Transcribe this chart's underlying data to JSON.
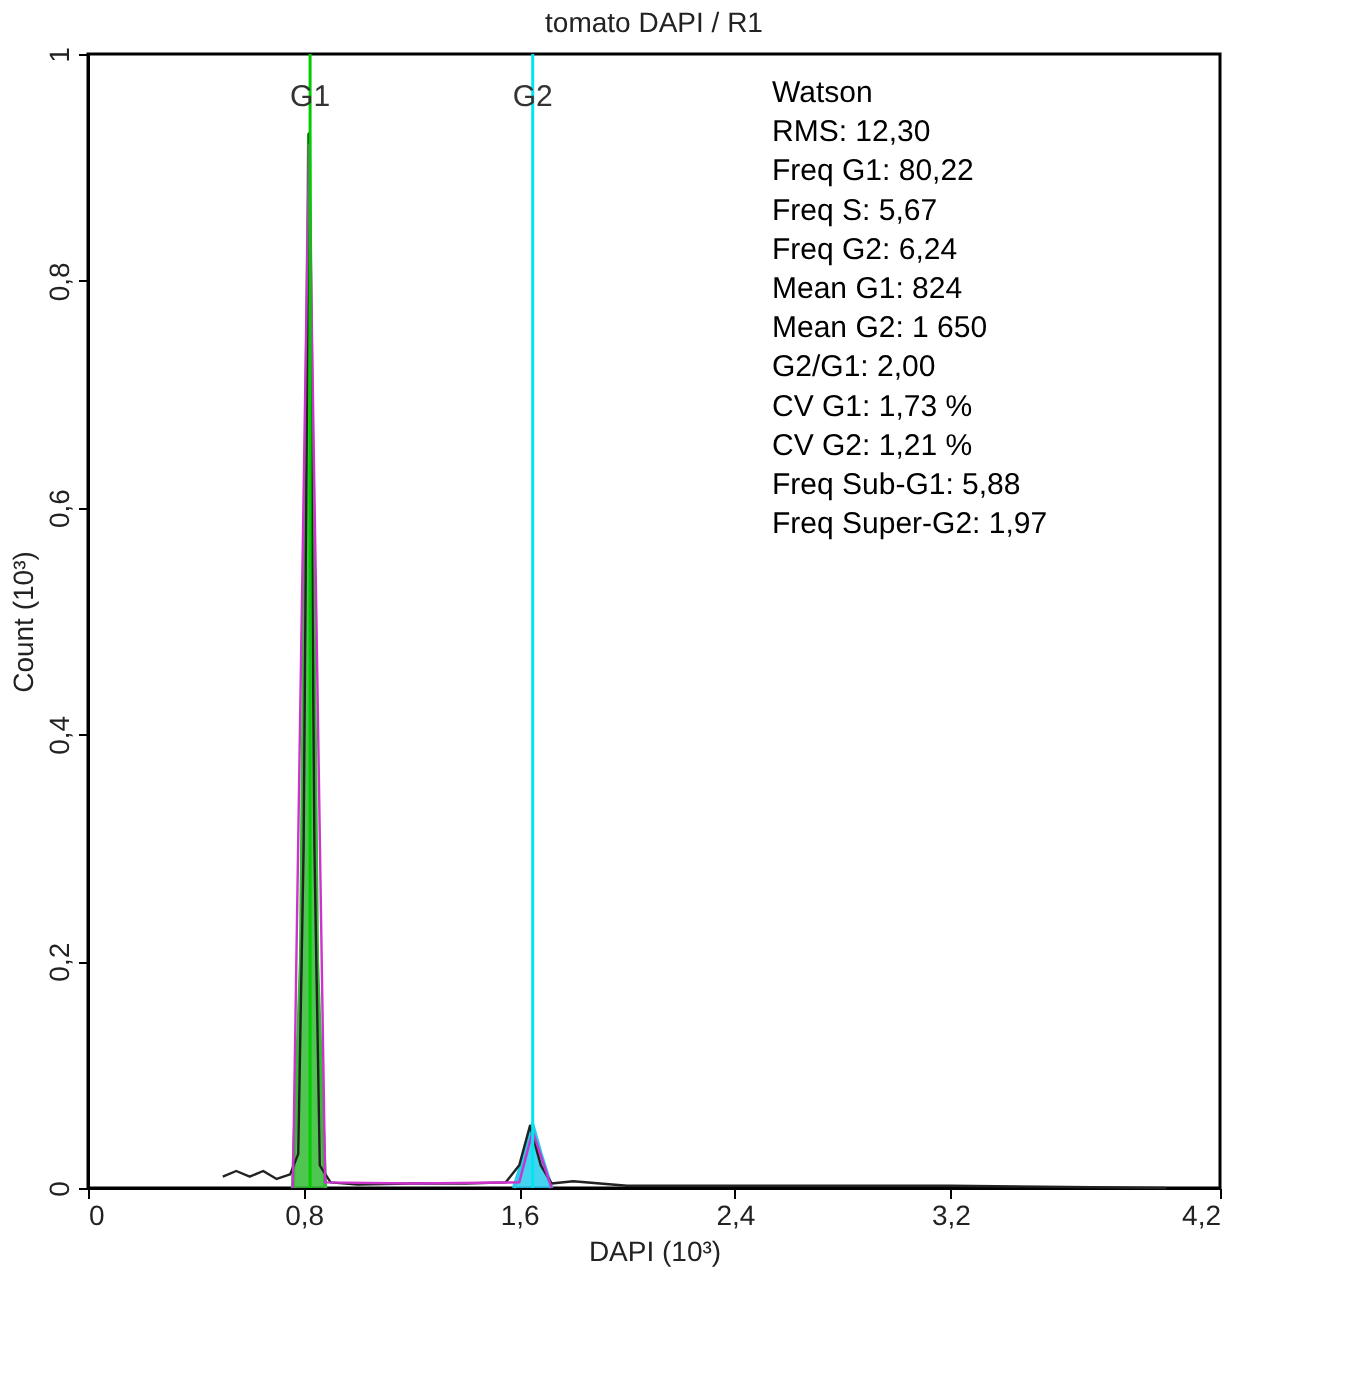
{
  "chart_data": {
    "type": "line",
    "title": "tomato DAPI / R1",
    "xlabel": "DAPI (10³)",
    "ylabel": "Count (10³)",
    "xlim": [
      0,
      4.2
    ],
    "ylim": [
      0,
      1
    ],
    "xticks": [
      {
        "value": 0,
        "label": "0"
      },
      {
        "value": 0.8,
        "label": "0,8"
      },
      {
        "value": 1.6,
        "label": "1,6"
      },
      {
        "value": 2.4,
        "label": "2,4"
      },
      {
        "value": 3.2,
        "label": "3,2"
      },
      {
        "value": 4.2,
        "label": "4,2"
      }
    ],
    "yticks": [
      {
        "value": 0,
        "label": "0"
      },
      {
        "value": 0.2,
        "label": "0,2"
      },
      {
        "value": 0.4,
        "label": "0,4"
      },
      {
        "value": 0.6,
        "label": "0,6"
      },
      {
        "value": 0.8,
        "label": "0,8"
      },
      {
        "value": 1,
        "label": "1"
      }
    ],
    "series": [
      {
        "type": "area",
        "color": "#33bb33",
        "x": [
          0.76,
          0.79,
          0.82,
          0.85,
          0.88
        ],
        "values": [
          0,
          0.2,
          0.93,
          0.2,
          0
        ]
      },
      {
        "type": "area",
        "color": "#22ccee",
        "x": [
          1.58,
          1.62,
          1.65,
          1.68,
          1.72
        ],
        "values": [
          0,
          0.03,
          0.055,
          0.03,
          0
        ]
      },
      {
        "type": "line",
        "color": "#222222",
        "x": [
          0.5,
          0.55,
          0.6,
          0.65,
          0.7,
          0.75,
          0.78,
          0.8,
          0.82,
          0.84,
          0.86,
          0.9,
          1.0,
          1.2,
          1.4,
          1.55,
          1.6,
          1.64,
          1.68,
          1.72,
          1.8,
          2.0,
          3.2,
          4.0
        ],
        "values": [
          0.01,
          0.015,
          0.01,
          0.015,
          0.008,
          0.012,
          0.03,
          0.3,
          0.93,
          0.3,
          0.02,
          0.005,
          0.003,
          0.004,
          0.004,
          0.005,
          0.02,
          0.055,
          0.02,
          0.004,
          0.006,
          0.002,
          0.002,
          0
        ]
      },
      {
        "type": "line",
        "color": "#cc33cc",
        "x": [
          0.76,
          0.82,
          0.88,
          1.2,
          1.6,
          1.65,
          1.72
        ],
        "values": [
          0,
          0.92,
          0.005,
          0.004,
          0.005,
          0.05,
          0
        ]
      }
    ],
    "ref_lines": [
      {
        "axis": "x",
        "value": 0.824,
        "label": "G1",
        "color": "#00cc00"
      },
      {
        "axis": "x",
        "value": 1.65,
        "label": "G2",
        "color": "#00e5ee"
      }
    ],
    "annotations": [
      "Watson",
      "RMS: 12,30",
      "Freq G1: 80,22",
      "Freq S: 5,67",
      "Freq G2: 6,24",
      "Mean G1: 824",
      "Mean G2: 1 650",
      "G2/G1: 2,00",
      "CV G1: 1,73 %",
      "CV G2: 1,21 %",
      "Freq Sub-G1: 5,88",
      "Freq Super-G2: 1,97"
    ],
    "grid": false
  }
}
